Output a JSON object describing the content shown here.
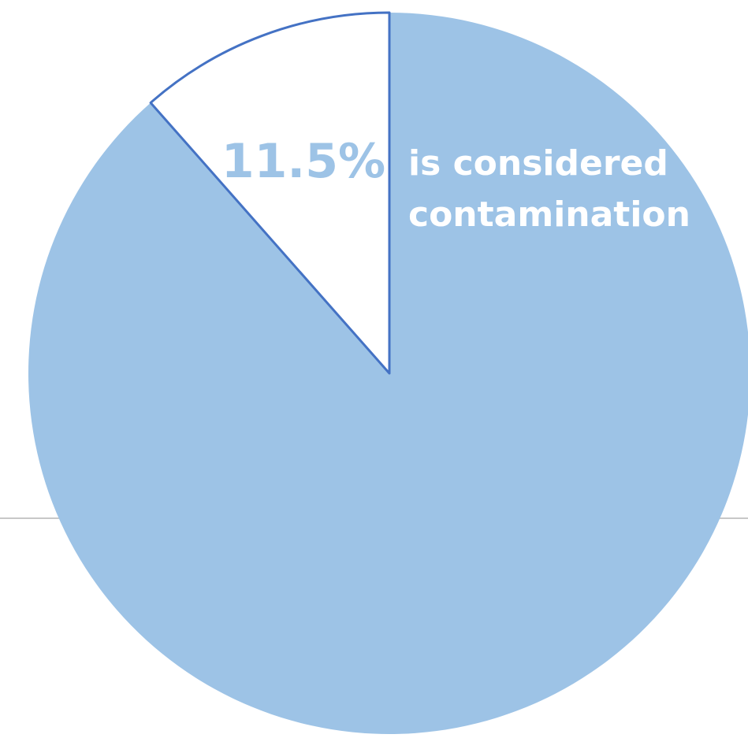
{
  "chart_data": {
    "type": "pie",
    "slices": [
      {
        "value": 11.5,
        "label": "11.5%",
        "color": "#ffffff",
        "border": "#4472c4"
      },
      {
        "value": 88.5,
        "label": "",
        "color": "#9dc3e6"
      }
    ],
    "annotation": {
      "line1": "is considered",
      "line2": "contamination"
    },
    "label_color": "#9dc3e6",
    "annotation_color": "#ffffff"
  }
}
